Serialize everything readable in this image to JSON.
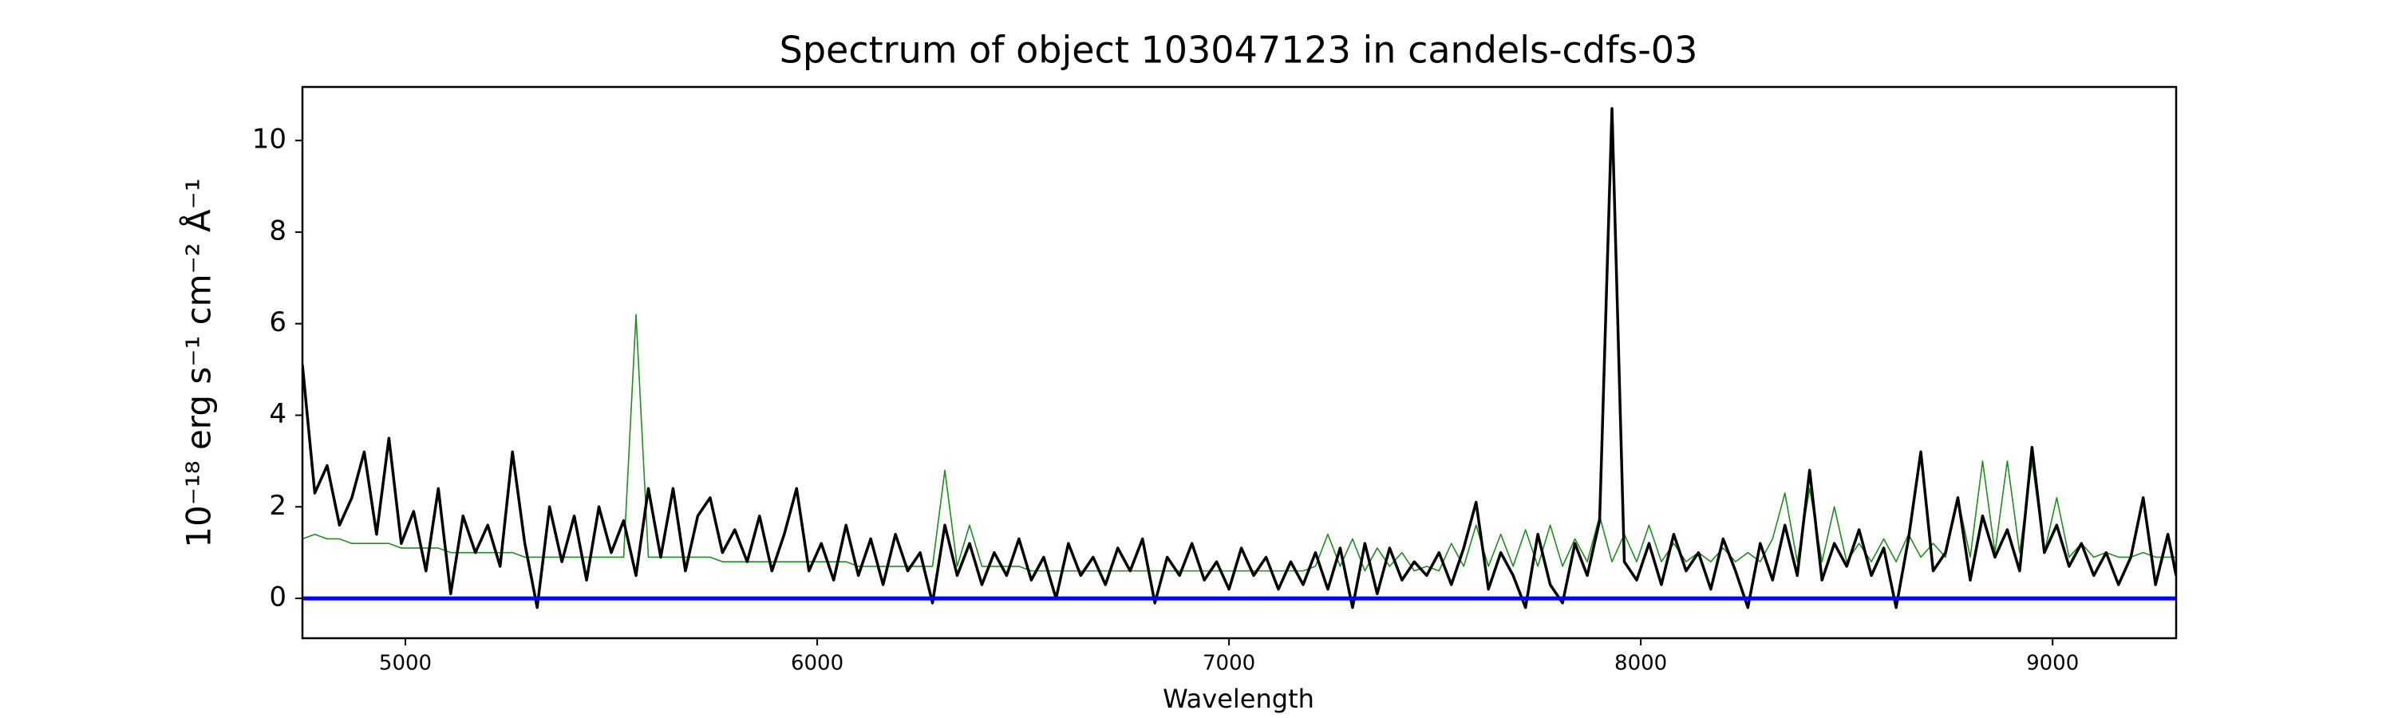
{
  "chart_data": {
    "type": "line",
    "title": "Spectrum of object 103047123 in candels-cdfs-03",
    "xlabel": "Wavelength",
    "ylabel": "10⁻¹⁸ erg s⁻¹ cm⁻² Å⁻¹",
    "xlim": [
      4750,
      9300
    ],
    "ylim": [
      -0.87,
      11.17
    ],
    "xticks": [
      5000,
      6000,
      7000,
      8000,
      9000
    ],
    "yticks": [
      0,
      2,
      4,
      6,
      8,
      10
    ],
    "hline": {
      "value": 0,
      "color": "#0000ff"
    },
    "x": [
      4750,
      4780,
      4810,
      4840,
      4870,
      4900,
      4930,
      4960,
      4990,
      5020,
      5050,
      5080,
      5110,
      5140,
      5170,
      5200,
      5230,
      5260,
      5290,
      5320,
      5350,
      5380,
      5410,
      5440,
      5470,
      5500,
      5530,
      5560,
      5590,
      5620,
      5650,
      5680,
      5710,
      5740,
      5770,
      5800,
      5830,
      5860,
      5890,
      5920,
      5950,
      5980,
      6010,
      6040,
      6070,
      6100,
      6130,
      6160,
      6190,
      6220,
      6250,
      6280,
      6310,
      6340,
      6370,
      6400,
      6430,
      6460,
      6490,
      6520,
      6550,
      6580,
      6610,
      6640,
      6670,
      6700,
      6730,
      6760,
      6790,
      6820,
      6850,
      6880,
      6910,
      6940,
      6970,
      7000,
      7030,
      7060,
      7090,
      7120,
      7150,
      7180,
      7210,
      7240,
      7270,
      7300,
      7330,
      7360,
      7390,
      7420,
      7450,
      7480,
      7510,
      7540,
      7570,
      7600,
      7630,
      7660,
      7690,
      7720,
      7750,
      7780,
      7810,
      7840,
      7870,
      7900,
      7930,
      7960,
      7990,
      8020,
      8050,
      8080,
      8110,
      8140,
      8170,
      8200,
      8230,
      8260,
      8290,
      8320,
      8350,
      8380,
      8410,
      8440,
      8470,
      8500,
      8530,
      8560,
      8590,
      8620,
      8650,
      8680,
      8710,
      8740,
      8770,
      8800,
      8830,
      8860,
      8890,
      8920,
      8950,
      8980,
      9010,
      9040,
      9070,
      9100,
      9130,
      9160,
      9190,
      9220,
      9250,
      9280,
      9300
    ],
    "series": [
      {
        "color": "#228b22",
        "width": 1.6,
        "values": [
          1.3,
          1.4,
          1.3,
          1.3,
          1.2,
          1.2,
          1.2,
          1.2,
          1.1,
          1.1,
          1.1,
          1.1,
          1.0,
          1.0,
          1.0,
          1.0,
          1.0,
          1.0,
          0.9,
          0.9,
          0.9,
          0.9,
          0.9,
          0.9,
          0.9,
          0.9,
          0.9,
          6.2,
          0.9,
          0.9,
          0.9,
          0.9,
          0.9,
          0.9,
          0.8,
          0.8,
          0.8,
          0.8,
          0.8,
          0.8,
          0.8,
          0.8,
          0.8,
          0.8,
          0.8,
          0.7,
          0.7,
          0.7,
          0.7,
          0.7,
          0.7,
          0.7,
          2.8,
          0.7,
          1.6,
          0.7,
          0.7,
          0.7,
          0.7,
          0.6,
          0.6,
          0.6,
          0.6,
          0.6,
          0.6,
          0.6,
          0.6,
          0.6,
          0.6,
          0.6,
          0.6,
          0.6,
          0.6,
          0.6,
          0.6,
          0.6,
          0.6,
          0.6,
          0.6,
          0.6,
          0.6,
          0.6,
          0.7,
          1.4,
          0.7,
          1.3,
          0.6,
          1.1,
          0.7,
          1.0,
          0.6,
          0.7,
          0.6,
          1.2,
          0.7,
          1.6,
          0.7,
          1.4,
          0.7,
          1.5,
          0.7,
          1.6,
          0.7,
          1.3,
          0.8,
          1.8,
          0.8,
          1.4,
          0.8,
          1.6,
          0.8,
          1.2,
          0.8,
          1.0,
          0.8,
          1.1,
          0.8,
          1.0,
          0.8,
          1.3,
          2.3,
          0.8,
          2.4,
          0.8,
          2.0,
          0.8,
          1.2,
          0.8,
          1.3,
          0.8,
          1.4,
          0.9,
          1.2,
          0.9,
          2.2,
          0.9,
          3.0,
          1.0,
          3.0,
          1.0,
          3.0,
          1.0,
          2.2,
          0.9,
          1.2,
          0.9,
          1.0,
          0.9,
          0.9,
          1.0,
          0.9,
          0.9,
          0.9
        ]
      },
      {
        "color": "#000000",
        "width": 3.5,
        "values": [
          5.1,
          2.3,
          2.9,
          1.6,
          2.2,
          3.2,
          1.4,
          3.5,
          1.2,
          1.9,
          0.6,
          2.4,
          0.1,
          1.8,
          1.0,
          1.6,
          0.7,
          3.2,
          1.2,
          -0.2,
          2.0,
          0.8,
          1.8,
          0.4,
          2.0,
          1.0,
          1.7,
          0.5,
          2.4,
          0.9,
          2.4,
          0.6,
          1.8,
          2.2,
          1.0,
          1.5,
          0.8,
          1.8,
          0.6,
          1.4,
          2.4,
          0.6,
          1.2,
          0.4,
          1.6,
          0.5,
          1.3,
          0.3,
          1.4,
          0.6,
          1.0,
          -0.1,
          1.6,
          0.5,
          1.2,
          0.3,
          1.0,
          0.5,
          1.3,
          0.4,
          0.9,
          0.0,
          1.2,
          0.5,
          0.9,
          0.3,
          1.1,
          0.6,
          1.3,
          -0.1,
          0.9,
          0.5,
          1.2,
          0.4,
          0.8,
          0.2,
          1.1,
          0.5,
          0.9,
          0.2,
          0.8,
          0.3,
          1.0,
          0.2,
          1.1,
          -0.2,
          1.2,
          0.1,
          1.1,
          0.4,
          0.8,
          0.5,
          1.0,
          0.3,
          1.1,
          2.1,
          0.2,
          1.0,
          0.5,
          -0.2,
          1.4,
          0.3,
          -0.1,
          1.2,
          0.5,
          1.7,
          10.7,
          0.8,
          0.4,
          1.2,
          0.3,
          1.4,
          0.6,
          1.0,
          0.2,
          1.3,
          0.6,
          -0.2,
          1.2,
          0.4,
          1.6,
          0.5,
          2.8,
          0.4,
          1.2,
          0.7,
          1.5,
          0.5,
          1.1,
          -0.2,
          1.3,
          3.2,
          0.6,
          1.0,
          2.2,
          0.4,
          1.8,
          0.9,
          1.5,
          0.6,
          3.3,
          1.0,
          1.6,
          0.7,
          1.2,
          0.5,
          1.0,
          0.3,
          0.9,
          2.2,
          0.3,
          1.4,
          0.5
        ]
      }
    ]
  }
}
